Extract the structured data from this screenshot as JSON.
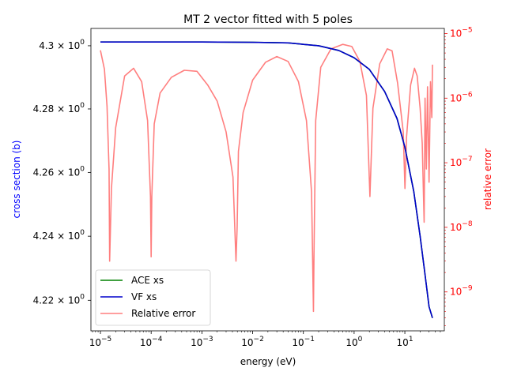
{
  "chart_data": {
    "type": "line",
    "title": "MT 2 vector fitted with 5 poles",
    "xlabel": "energy (eV)",
    "ylabel_left": "cross section (b)",
    "ylabel_right": "relative error",
    "x_scale": "log",
    "y_left_scale": "log",
    "y_right_scale": "log",
    "xlim": [
      6.5e-06,
      60
    ],
    "ylim_left": [
      4.2105,
      4.3055
    ],
    "ylim_right": [
      2.5e-10,
      1.2e-05
    ],
    "x_ticks": [
      {
        "value": 1e-05,
        "base": "10",
        "exp": "−5"
      },
      {
        "value": 0.0001,
        "base": "10",
        "exp": "−4"
      },
      {
        "value": 0.001,
        "base": "10",
        "exp": "−3"
      },
      {
        "value": 0.01,
        "base": "10",
        "exp": "−2"
      },
      {
        "value": 0.1,
        "base": "10",
        "exp": "−1"
      },
      {
        "value": 1,
        "base": "10",
        "exp": "0"
      },
      {
        "value": 10,
        "base": "10",
        "exp": "1"
      }
    ],
    "y_left_ticks": [
      {
        "value": 4.22,
        "mant": "4.22 × 10",
        "exp": "0"
      },
      {
        "value": 4.24,
        "mant": "4.24 × 10",
        "exp": "0"
      },
      {
        "value": 4.26,
        "mant": "4.26 × 10",
        "exp": "0"
      },
      {
        "value": 4.28,
        "mant": "4.28 × 10",
        "exp": "0"
      },
      {
        "value": 4.3,
        "mant": "4.3 × 10",
        "exp": "0"
      }
    ],
    "y_right_ticks": [
      {
        "value": 1e-09,
        "base": "10",
        "exp": "−9"
      },
      {
        "value": 1e-08,
        "base": "10",
        "exp": "−8"
      },
      {
        "value": 1e-07,
        "base": "10",
        "exp": "−7"
      },
      {
        "value": 1e-06,
        "base": "10",
        "exp": "−6"
      },
      {
        "value": 1e-05,
        "base": "10",
        "exp": "−5"
      }
    ],
    "colors": {
      "left_axis": "#0000ff",
      "right_axis": "#ff0000"
    },
    "legend_position": "lower-left",
    "series": [
      {
        "name": "ACE xs",
        "axis": "left",
        "color": "#008000",
        "x": [
          1e-05,
          0.001,
          0.01,
          0.05,
          0.2,
          0.5,
          1,
          2,
          4,
          7,
          10,
          15,
          20,
          25,
          30,
          35
        ],
        "y": [
          4.3012,
          4.3012,
          4.3011,
          4.3009,
          4.3,
          4.2985,
          4.2962,
          4.2925,
          4.2855,
          4.277,
          4.268,
          4.254,
          4.24,
          4.228,
          4.218,
          4.2145
        ]
      },
      {
        "name": "VF xs",
        "axis": "left",
        "color": "#0000cc",
        "x": [
          1e-05,
          0.001,
          0.01,
          0.05,
          0.2,
          0.5,
          1,
          2,
          4,
          7,
          10,
          15,
          20,
          25,
          30,
          35
        ],
        "y": [
          4.3012,
          4.3012,
          4.3011,
          4.3009,
          4.3,
          4.2985,
          4.2962,
          4.2925,
          4.2855,
          4.277,
          4.268,
          4.254,
          4.24,
          4.228,
          4.218,
          4.2145
        ]
      },
      {
        "name": "Relative error",
        "axis": "right",
        "color": "#ff7f7f",
        "x": [
          1e-05,
          1.2e-05,
          1.35e-05,
          1.48e-05,
          1.52e-05,
          1.65e-05,
          2e-05,
          3e-05,
          4.5e-05,
          6.5e-05,
          8.5e-05,
          9.7e-05,
          0.0001,
          0.000103,
          0.000115,
          0.00015,
          0.00025,
          0.00045,
          0.0008,
          0.0013,
          0.002,
          0.003,
          0.0041,
          0.0047,
          0.00495,
          0.00525,
          0.0065,
          0.01,
          0.018,
          0.03,
          0.05,
          0.08,
          0.115,
          0.145,
          0.158,
          0.162,
          0.175,
          0.22,
          0.35,
          0.6,
          0.9,
          1.3,
          1.75,
          2.05,
          2.35,
          3.2,
          4.5,
          5.6,
          7.2,
          9.3,
          10.05,
          10.8,
          13,
          15.5,
          17.5,
          20,
          22,
          24,
          25,
          26.5,
          28,
          30,
          32,
          34,
          35
        ],
        "y": [
          5.5e-06,
          2.8e-06,
          7.5e-07,
          8e-08,
          3e-09,
          4e-08,
          3.5e-07,
          2.2e-06,
          2.9e-06,
          1.8e-06,
          4.5e-07,
          3e-08,
          3.5e-09,
          3e-08,
          4e-07,
          1.2e-06,
          2.1e-06,
          2.7e-06,
          2.6e-06,
          1.6e-06,
          9e-07,
          3e-07,
          6e-08,
          3e-09,
          1e-08,
          1.5e-07,
          6e-07,
          1.9e-06,
          3.6e-06,
          4.4e-06,
          3.7e-06,
          1.8e-06,
          4.5e-07,
          3.5e-08,
          5e-10,
          4e-09,
          4.5e-07,
          3e-06,
          5.8e-06,
          6.8e-06,
          6.3e-06,
          3.7e-06,
          1.1e-06,
          3e-08,
          7e-07,
          3.4e-06,
          5.8e-06,
          5.4e-06,
          1.7e-06,
          3e-07,
          4e-08,
          2.5e-07,
          1.6e-06,
          2.9e-06,
          2.2e-06,
          7e-07,
          2e-07,
          1.2e-08,
          1e-06,
          8e-08,
          1.5e-06,
          5e-08,
          1.8e-06,
          5e-07,
          3.3e-06
        ]
      }
    ]
  }
}
